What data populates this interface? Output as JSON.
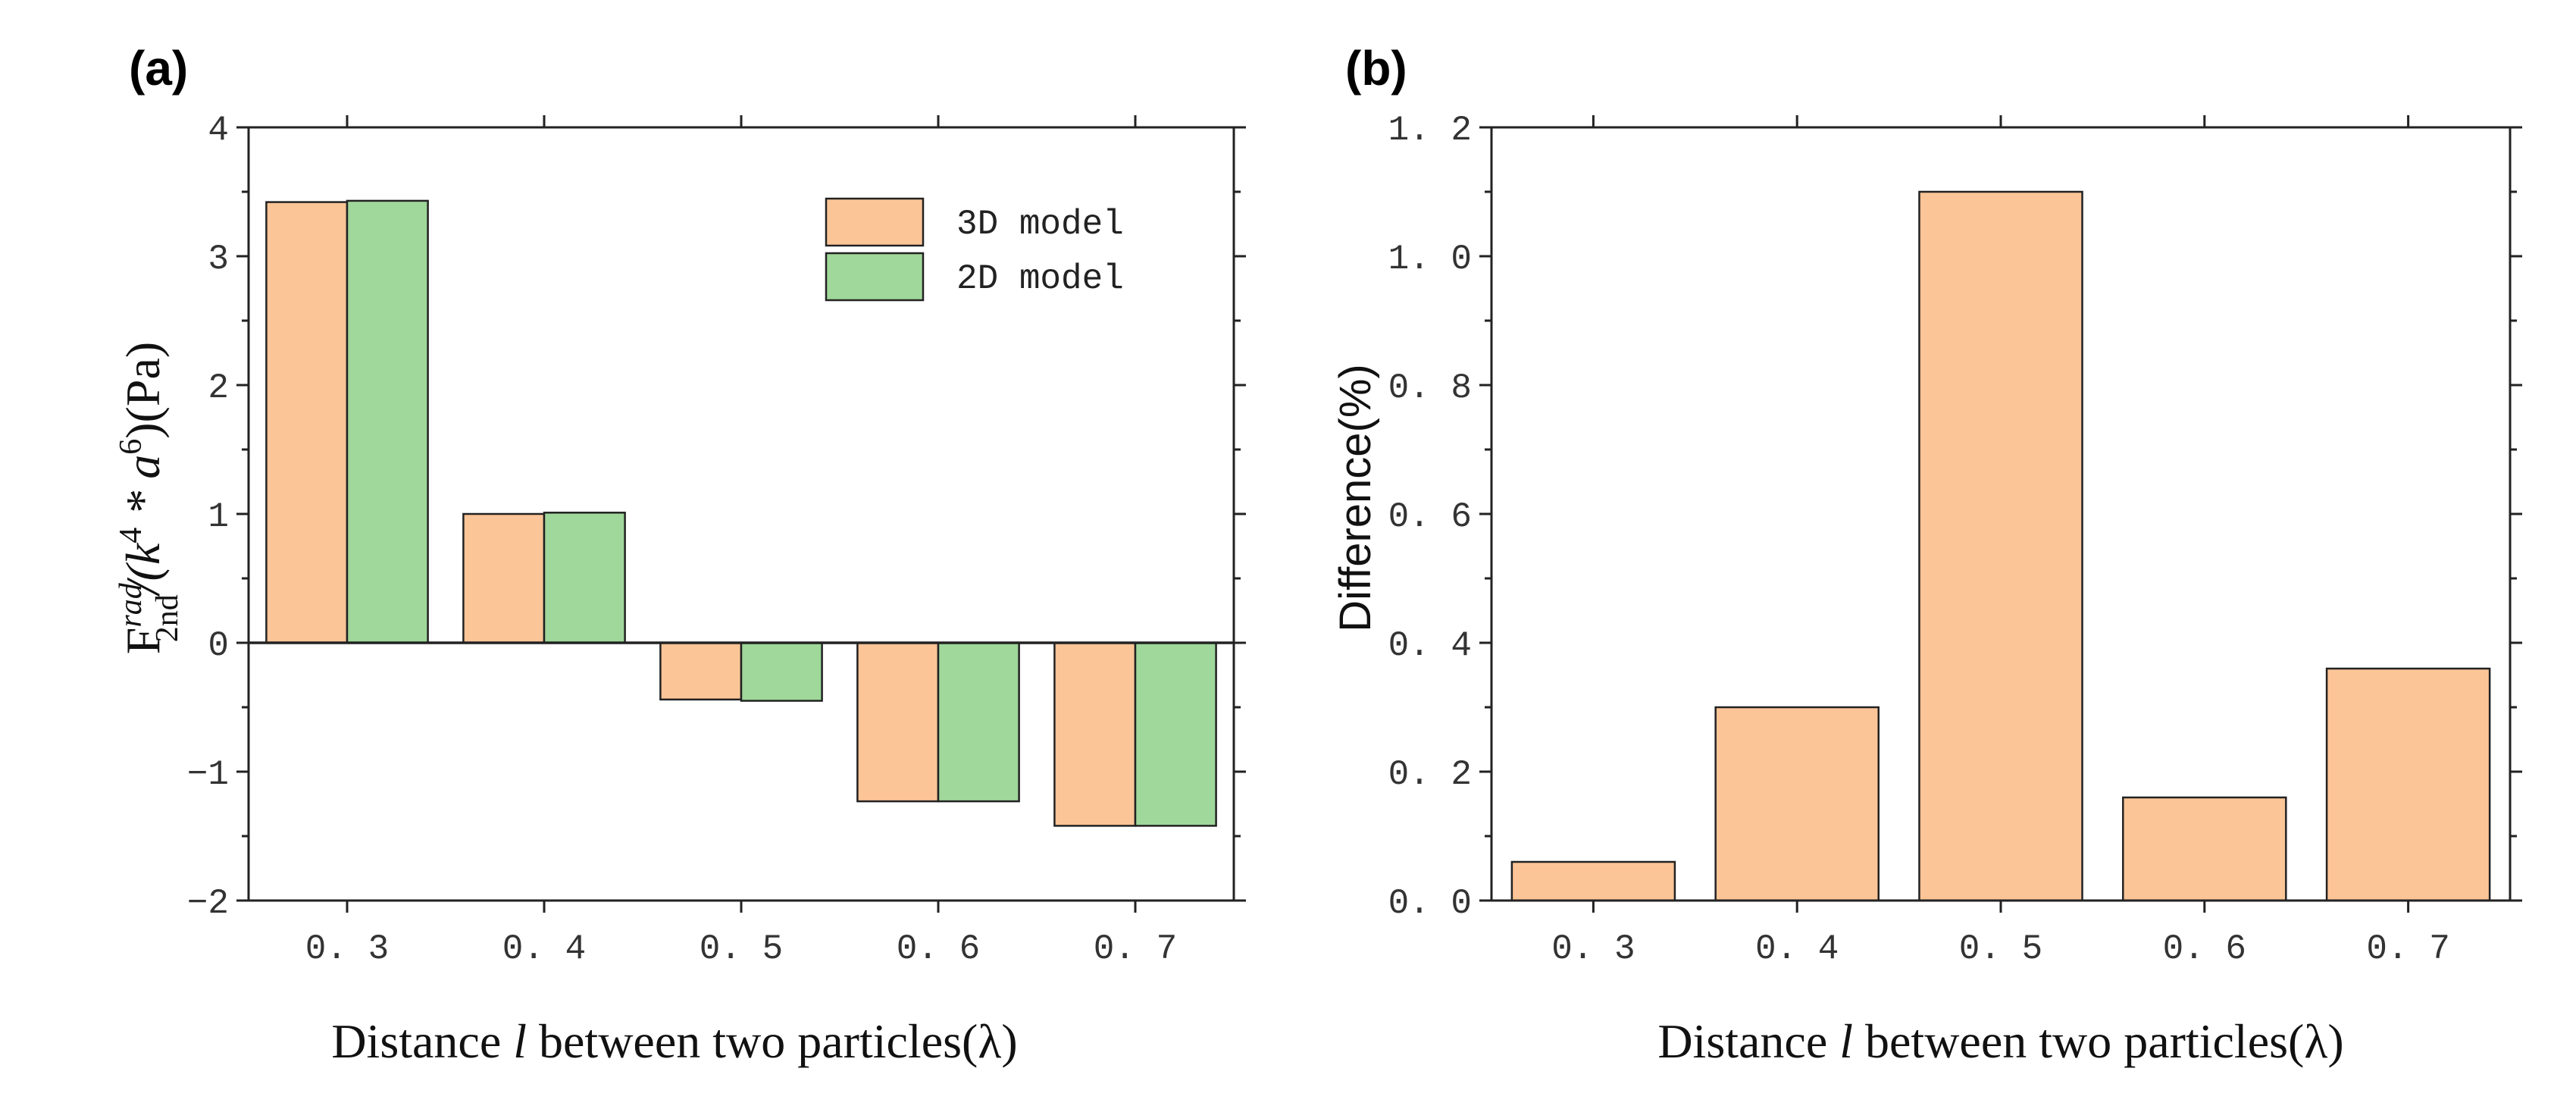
{
  "chart_data": [
    {
      "panel": "(a)",
      "type": "bar",
      "categories": [
        "0. 3",
        "0. 4",
        "0. 5",
        "0. 6",
        "0. 7"
      ],
      "series": [
        {
          "name": "3D model",
          "color": "#fcc597",
          "values": [
            3.42,
            1.0,
            -0.44,
            -1.23,
            -1.42
          ]
        },
        {
          "name": "2D model",
          "color": "#9fd89a",
          "values": [
            3.43,
            1.01,
            -0.45,
            -1.23,
            -1.42
          ]
        }
      ],
      "ylim": [
        -2,
        4
      ],
      "yticks": [
        -2,
        -1,
        0,
        1,
        2,
        3,
        4
      ],
      "ytick_labels": [
        "−2",
        "−1",
        "0",
        "1",
        "2",
        "3",
        "4"
      ],
      "xlabel_parts": [
        "Distance ",
        "l",
        " between two particles(λ)"
      ],
      "ylabel": {
        "main": "F",
        "sup": "rad",
        "sub": "2nd",
        "denom": "/(k",
        "k_exp": "4",
        "times": " * a",
        "a_exp": "6",
        "close": ")(Pa)"
      },
      "zero_line": true,
      "legend_position": "top-right"
    },
    {
      "panel": "(b)",
      "type": "bar",
      "categories": [
        "0. 3",
        "0. 4",
        "0. 5",
        "0. 6",
        "0. 7"
      ],
      "series": [
        {
          "name": "Difference",
          "color": "#fcc597",
          "values": [
            0.06,
            0.3,
            1.1,
            0.16,
            0.36
          ]
        }
      ],
      "ylim": [
        0,
        1.2
      ],
      "yticks": [
        0,
        0.2,
        0.4,
        0.6,
        0.8,
        1.0,
        1.2
      ],
      "ytick_labels": [
        "0. 0",
        "0. 2",
        "0. 4",
        "0. 6",
        "0. 8",
        "1. 0",
        "1. 2"
      ],
      "xlabel_parts": [
        "Distance ",
        "l",
        " between two particles(λ)"
      ],
      "ylabel": "Difference(%)"
    }
  ]
}
